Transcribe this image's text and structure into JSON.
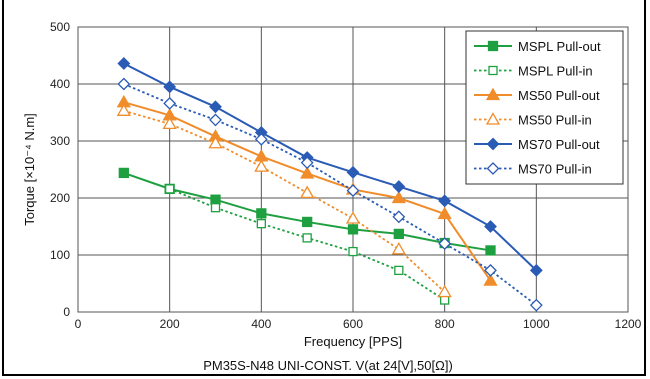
{
  "chart_data": {
    "type": "line",
    "title": "",
    "caption": "PM35S-N48 UNI-CONST. V(at 24[V],50[Ω])",
    "xlabel": "Frequency [PPS]",
    "ylabel": "Torque [×10⁻⁴ N.m]",
    "xlim": [
      0,
      1200
    ],
    "ylim": [
      0,
      500
    ],
    "xticks": [
      0,
      200,
      400,
      600,
      800,
      1000,
      1200
    ],
    "yticks": [
      0,
      100,
      200,
      300,
      400,
      500
    ],
    "grid": true,
    "legend_position": "top-right",
    "series": [
      {
        "name": "MSPL Pull-out",
        "color": "#1fa040",
        "style": "solid",
        "marker": "square-filled",
        "x": [
          100,
          200,
          300,
          400,
          500,
          600,
          700,
          800,
          900
        ],
        "y": [
          244,
          216,
          197,
          173,
          158,
          145,
          137,
          121,
          108
        ]
      },
      {
        "name": "MSPL Pull-in",
        "color": "#1fa040",
        "style": "dotted",
        "marker": "square-open",
        "x": [
          200,
          300,
          400,
          500,
          600,
          700,
          800
        ],
        "y": [
          216,
          183,
          155,
          130,
          106,
          73,
          21
        ]
      },
      {
        "name": "MS50  Pull-out",
        "color": "#f08c2a",
        "style": "solid",
        "marker": "triangle-filled",
        "x": [
          100,
          200,
          300,
          400,
          500,
          600,
          700,
          800,
          900
        ],
        "y": [
          368,
          345,
          308,
          273,
          243,
          215,
          200,
          172,
          55
        ]
      },
      {
        "name": "MS50  Pull-in",
        "color": "#f08c2a",
        "style": "dotted",
        "marker": "triangle-open",
        "x": [
          100,
          200,
          300,
          400,
          500,
          600,
          700,
          800
        ],
        "y": [
          353,
          330,
          296,
          255,
          209,
          164,
          110,
          35
        ]
      },
      {
        "name": "MS70  Pull-out",
        "color": "#2a5bb5",
        "style": "solid",
        "marker": "diamond-filled",
        "x": [
          100,
          200,
          300,
          400,
          500,
          600,
          700,
          800,
          900,
          1000
        ],
        "y": [
          436,
          395,
          360,
          315,
          271,
          245,
          220,
          195,
          150,
          73
        ]
      },
      {
        "name": "MS70  Pull-in",
        "color": "#2a5bb5",
        "style": "dotted",
        "marker": "diamond-open",
        "x": [
          100,
          200,
          300,
          400,
          500,
          600,
          700,
          800,
          900,
          1000
        ],
        "y": [
          400,
          366,
          337,
          303,
          262,
          213,
          167,
          120,
          73,
          12
        ]
      }
    ]
  }
}
